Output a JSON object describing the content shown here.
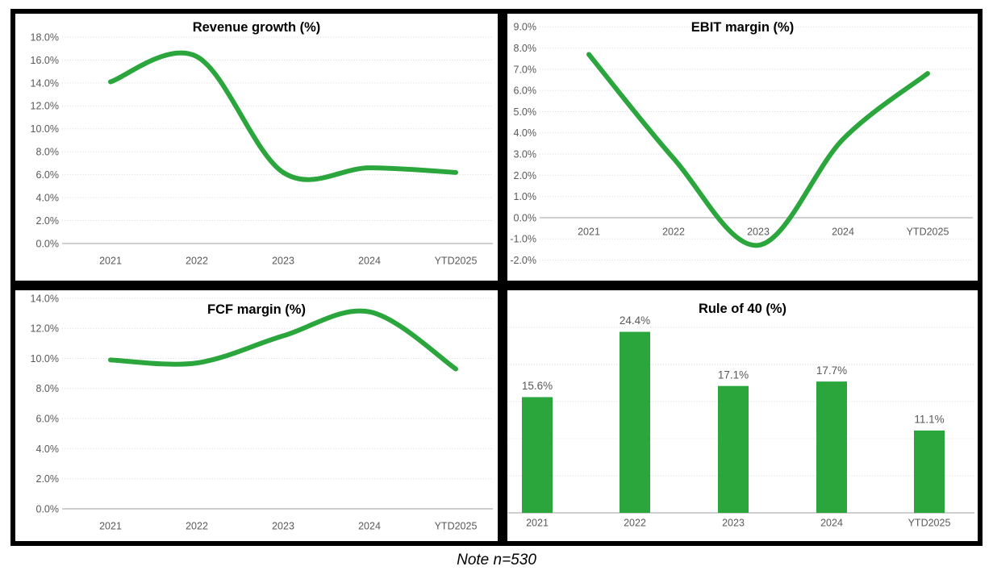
{
  "note": {
    "text": "Note n=530"
  },
  "colors": {
    "series_green": "#2aa63c",
    "gridline": "#d9d9d9",
    "axis_line": "#bfbfbf",
    "tick_text": "#595959",
    "title_text": "#000000",
    "frame": "#000000"
  },
  "chart_data": [
    {
      "type": "line",
      "title": "Revenue growth (%)",
      "categories": [
        "2021",
        "2022",
        "2023",
        "2024",
        "YTD2025"
      ],
      "values": [
        14.1,
        16.3,
        6.2,
        6.6,
        6.2
      ],
      "ylim": [
        0,
        18
      ],
      "y_tick_values": [
        18,
        16,
        14,
        12,
        10,
        8,
        6,
        4,
        2,
        0
      ],
      "y_tick_labels": [
        "18.0%",
        "16.0%",
        "14.0%",
        "12.0%",
        "10.0%",
        "8.0%",
        "6.0%",
        "4.0%",
        "2.0%",
        "0.0%"
      ],
      "grid": "horizontal-dotted",
      "legend": "none"
    },
    {
      "type": "line",
      "title": "EBIT margin (%)",
      "categories": [
        "2021",
        "2022",
        "2023",
        "2024",
        "YTD2025"
      ],
      "values": [
        7.7,
        2.8,
        -1.3,
        3.7,
        6.8
      ],
      "ylim": [
        -2,
        9
      ],
      "y_tick_values": [
        9,
        8,
        7,
        6,
        5,
        4,
        3,
        2,
        1,
        0,
        -1,
        -2
      ],
      "y_tick_labels": [
        "9.0%",
        "8.0%",
        "7.0%",
        "6.0%",
        "5.0%",
        "4.0%",
        "3.0%",
        "2.0%",
        "1.0%",
        "0.0%",
        "-1.0%",
        "-2.0%"
      ],
      "grid": "horizontal-dotted",
      "legend": "none"
    },
    {
      "type": "line",
      "title": "FCF margin (%)",
      "categories": [
        "2021",
        "2022",
        "2023",
        "2024",
        "YTD2025"
      ],
      "values": [
        9.9,
        9.7,
        11.5,
        13.1,
        9.3
      ],
      "ylim": [
        0,
        14
      ],
      "y_tick_values": [
        14,
        12,
        10,
        8,
        6,
        4,
        2,
        0
      ],
      "y_tick_labels": [
        "14.0%",
        "12.0%",
        "10.0%",
        "8.0%",
        "6.0%",
        "4.0%",
        "2.0%",
        "0.0%"
      ],
      "grid": "horizontal-dotted",
      "legend": "none"
    },
    {
      "type": "bar",
      "title": "Rule of 40 (%)",
      "categories": [
        "2021",
        "2022",
        "2023",
        "2024",
        "YTD2025"
      ],
      "values": [
        15.6,
        24.4,
        17.1,
        17.7,
        11.1
      ],
      "value_labels": [
        "15.6%",
        "24.4%",
        "17.1%",
        "17.7%",
        "11.1%"
      ],
      "ylim": [
        0,
        27
      ],
      "y_tick_values": [
        25,
        20,
        15,
        10,
        5,
        0
      ],
      "y_tick_labels": [],
      "grid": "horizontal-dotted",
      "legend": "none"
    }
  ]
}
